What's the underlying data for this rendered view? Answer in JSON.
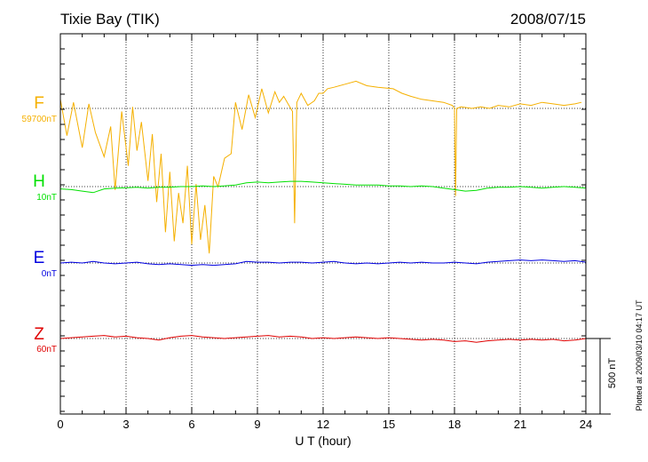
{
  "header": {
    "station_title": "Tixie Bay (TIK)",
    "date": "2008/07/15"
  },
  "footer": {
    "plotted_note": "Plotted at 2009/03/10 04:17 UT"
  },
  "chart_data": {
    "type": "line",
    "title": "Tixie Bay (TIK)",
    "date": "2008/07/15",
    "xlabel": "U T (hour)",
    "xlim": [
      0,
      24
    ],
    "xticks": [
      "0",
      "3",
      "6",
      "9",
      "12",
      "15",
      "18",
      "21",
      "24"
    ],
    "grid": true,
    "scale_bar": {
      "label": "500 nT",
      "value_nT": 500
    },
    "series": [
      {
        "name": "F",
        "baseline_label": "59700nT",
        "baseline_nT": 59700,
        "color": "#f5b000",
        "x": [
          0,
          0.3,
          0.6,
          1.0,
          1.3,
          1.6,
          2.0,
          2.3,
          2.5,
          2.8,
          3.1,
          3.3,
          3.5,
          3.7,
          4.0,
          4.2,
          4.4,
          4.6,
          4.8,
          5.0,
          5.2,
          5.4,
          5.6,
          5.8,
          6.0,
          6.2,
          6.4,
          6.6,
          6.8,
          7.0,
          7.2,
          7.5,
          7.8,
          8.0,
          8.3,
          8.6,
          8.9,
          9.2,
          9.5,
          9.8,
          10.0,
          10.2,
          10.4,
          10.6,
          10.7,
          10.8,
          11.0,
          11.3,
          11.6,
          11.8,
          12.0,
          12.2,
          12.5,
          13.0,
          13.5,
          14.0,
          14.5,
          15.2,
          15.6,
          16.0,
          16.5,
          17.0,
          17.5,
          17.9,
          18.0,
          18.05,
          18.1,
          18.3,
          18.8,
          19.2,
          19.6,
          20.0,
          20.5,
          21.0,
          21.5,
          22.0,
          22.5,
          23.0,
          23.5,
          23.8
        ],
        "values": [
          60,
          -180,
          40,
          -260,
          30,
          -160,
          -320,
          -120,
          -540,
          -20,
          -380,
          10,
          -280,
          -90,
          -480,
          -170,
          -620,
          -300,
          -820,
          -420,
          -880,
          -560,
          -760,
          -380,
          -900,
          -500,
          -870,
          -640,
          -960,
          -450,
          -520,
          -330,
          -300,
          40,
          -140,
          90,
          -60,
          130,
          -30,
          110,
          40,
          80,
          30,
          -20,
          -760,
          40,
          100,
          20,
          50,
          100,
          100,
          130,
          140,
          160,
          180,
          150,
          140,
          130,
          100,
          80,
          60,
          50,
          40,
          20,
          0,
          -580,
          0,
          10,
          0,
          10,
          0,
          20,
          10,
          30,
          20,
          40,
          30,
          20,
          30,
          40
        ]
      },
      {
        "name": "H",
        "baseline_label": "10nT",
        "baseline_nT": 10,
        "color": "#00e000",
        "x": [
          0,
          0.5,
          1.0,
          1.5,
          2.0,
          2.5,
          3.0,
          3.5,
          4.0,
          4.5,
          5.0,
          5.5,
          6.0,
          6.5,
          7.0,
          7.5,
          8.0,
          8.5,
          9.0,
          9.5,
          10.0,
          10.5,
          11.0,
          11.5,
          12.0,
          12.5,
          13.0,
          13.5,
          14.0,
          14.5,
          15.0,
          15.5,
          16.0,
          16.5,
          17.0,
          17.5,
          18.0,
          18.5,
          19.0,
          19.5,
          20.0,
          20.5,
          21.0,
          21.5,
          22.0,
          22.5,
          23.0,
          23.5,
          24.0
        ],
        "values": [
          -15,
          -20,
          -30,
          -40,
          -15,
          -10,
          -8,
          -5,
          -10,
          -5,
          -5,
          0,
          0,
          5,
          0,
          5,
          10,
          25,
          30,
          25,
          30,
          35,
          35,
          30,
          25,
          20,
          15,
          10,
          10,
          10,
          5,
          5,
          0,
          5,
          0,
          -10,
          -20,
          -30,
          -25,
          -10,
          -5,
          -5,
          0,
          -5,
          -10,
          -5,
          0,
          -5,
          -10
        ]
      },
      {
        "name": "E",
        "baseline_label": "0nT",
        "baseline_nT": 0,
        "color": "#0000e0",
        "x": [
          0,
          0.5,
          1.0,
          1.5,
          2.0,
          2.5,
          3.0,
          3.5,
          4.0,
          4.5,
          5.0,
          5.5,
          6.0,
          6.5,
          7.0,
          7.5,
          8.0,
          8.5,
          9.0,
          9.5,
          10.0,
          10.5,
          11.0,
          11.5,
          12.0,
          12.5,
          13.0,
          13.5,
          14.0,
          14.5,
          15.0,
          15.5,
          16.0,
          16.5,
          17.0,
          17.5,
          18.0,
          18.5,
          19.0,
          19.5,
          20.0,
          20.5,
          21.0,
          21.5,
          22.0,
          22.5,
          23.0,
          23.5,
          24.0
        ],
        "values": [
          0,
          5,
          0,
          10,
          0,
          -5,
          0,
          5,
          -5,
          -10,
          -5,
          -10,
          -15,
          -10,
          -15,
          -10,
          -5,
          10,
          5,
          5,
          0,
          5,
          5,
          0,
          5,
          10,
          0,
          -5,
          0,
          -5,
          0,
          5,
          0,
          5,
          0,
          0,
          5,
          0,
          -5,
          5,
          10,
          15,
          20,
          15,
          20,
          15,
          10,
          15,
          5
        ]
      },
      {
        "name": "Z",
        "baseline_label": "60nT",
        "baseline_nT": 60,
        "color": "#e00000",
        "x": [
          0,
          0.5,
          1.0,
          1.5,
          2.0,
          2.5,
          3.0,
          3.5,
          4.0,
          4.5,
          5.0,
          5.5,
          6.0,
          6.5,
          7.0,
          7.5,
          8.0,
          8.5,
          9.0,
          9.5,
          10.0,
          10.5,
          11.0,
          11.5,
          12.0,
          12.5,
          13.0,
          13.5,
          14.0,
          14.5,
          15.0,
          15.5,
          16.0,
          16.5,
          17.0,
          17.5,
          18.0,
          18.5,
          19.0,
          19.5,
          20.0,
          20.5,
          21.0,
          21.5,
          22.0,
          22.5,
          23.0,
          23.5,
          24.0
        ],
        "values": [
          0,
          5,
          10,
          15,
          20,
          10,
          15,
          5,
          0,
          -10,
          5,
          15,
          20,
          10,
          5,
          0,
          5,
          10,
          15,
          20,
          10,
          15,
          10,
          0,
          5,
          0,
          5,
          10,
          5,
          0,
          5,
          0,
          -5,
          -10,
          -5,
          -10,
          -20,
          -15,
          -25,
          -15,
          -10,
          -5,
          -10,
          -5,
          -10,
          -5,
          -15,
          -10,
          0
        ]
      }
    ]
  }
}
